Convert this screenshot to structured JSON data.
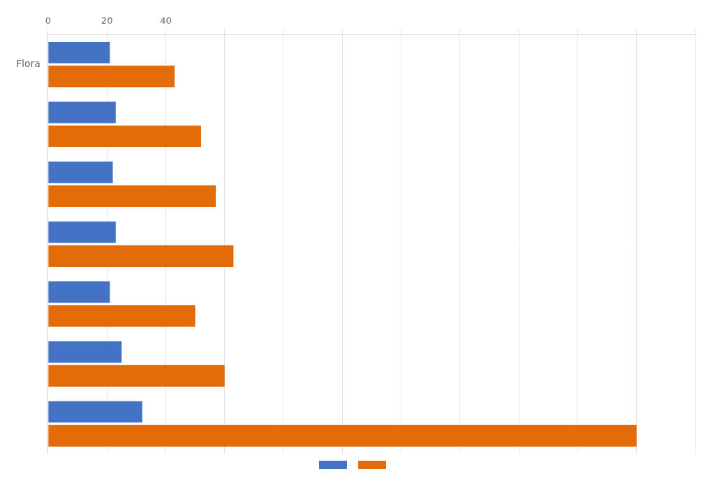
{
  "chart_data": {
    "type": "bar",
    "orientation": "horizontal",
    "categories": [
      "Flora",
      null,
      null,
      null,
      null,
      null,
      null
    ],
    "series": [
      {
        "color": "#4472C4",
        "values": [
          21,
          23,
          22,
          23,
          21,
          25,
          32
        ]
      },
      {
        "color": "#E36C09",
        "values": [
          43,
          52,
          57,
          63,
          50,
          60,
          200
        ]
      }
    ],
    "xlim": [
      0,
      220
    ],
    "xticks": [
      0,
      20,
      40,
      {
        "value": 60,
        "label": ""
      },
      {
        "value": 80,
        "label": ""
      },
      {
        "value": 100,
        "label": ""
      },
      {
        "value": 120,
        "label": ""
      },
      {
        "value": 140,
        "label": ""
      },
      {
        "value": 160,
        "label": ""
      },
      {
        "value": 180,
        "label": ""
      },
      {
        "value": 200,
        "label": ""
      },
      {
        "value": 220,
        "label": ""
      }
    ],
    "grid": "x",
    "legend": "bottom"
  }
}
